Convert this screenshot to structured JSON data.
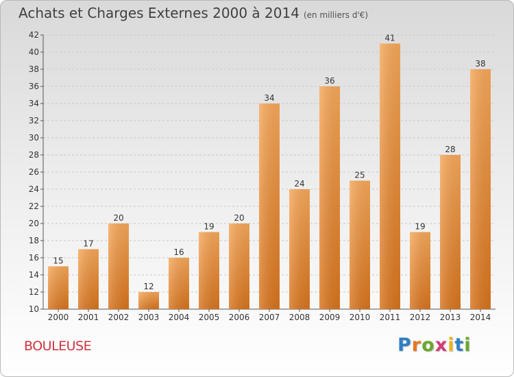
{
  "header": {
    "title": "Achats et Charges Externes 2000 à 2014",
    "subtitle": "(en milliers d'€)"
  },
  "footer": {
    "town": "BOULEUSE",
    "brand": "Proxiti",
    "brand_letters": [
      "P",
      "r",
      "o",
      "x",
      "i",
      "t",
      "i"
    ],
    "brand_colors": [
      "#2f7fc4",
      "#e87722",
      "#6aa72c",
      "#d23c7a",
      "#e8b520",
      "#2f7fc4",
      "#6aa72c"
    ]
  },
  "colors": {
    "bar_light": "#f6a85a",
    "bar_dark": "#d8741d",
    "grid": "#c8c8c8",
    "axis": "#555555",
    "text": "#333333"
  },
  "chart_data": {
    "type": "bar",
    "categories": [
      "2000",
      "2001",
      "2002",
      "2003",
      "2004",
      "2005",
      "2006",
      "2007",
      "2008",
      "2009",
      "2010",
      "2011",
      "2012",
      "2013",
      "2014"
    ],
    "values": [
      15,
      17,
      20,
      12,
      16,
      19,
      20,
      34,
      24,
      36,
      25,
      41,
      19,
      28,
      38
    ],
    "ylim": [
      10,
      42
    ],
    "yticks": [
      10,
      12,
      14,
      16,
      18,
      20,
      22,
      24,
      26,
      28,
      30,
      32,
      34,
      36,
      38,
      40,
      42
    ],
    "grid": true,
    "legend": "none",
    "data_labels": true
  }
}
